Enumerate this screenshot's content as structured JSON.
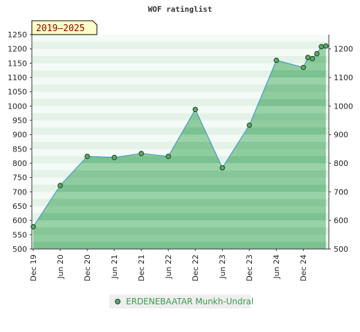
{
  "chart_data": {
    "type": "area",
    "title": "WOF ratinglist",
    "period_badge": "2019–2025",
    "y_ticks": [
      500,
      550,
      600,
      650,
      700,
      750,
      800,
      850,
      900,
      950,
      1000,
      1050,
      1100,
      1150,
      1200,
      1250
    ],
    "y_ticks_right": [
      500,
      600,
      700,
      800,
      900,
      1000,
      1100,
      1200
    ],
    "ylim": [
      500,
      1250
    ],
    "x_ticks": [
      "Dec 19",
      "Jun 20",
      "Dec 20",
      "Jun 21",
      "Dec 21",
      "Jun 22",
      "Dec 22",
      "Jun 23",
      "Dec 23",
      "Jun 24",
      "Dec 24"
    ],
    "x_tick_months": [
      0,
      6,
      12,
      18,
      24,
      30,
      36,
      42,
      48,
      54,
      60
    ],
    "xlim_months": [
      0,
      65.5
    ],
    "series": [
      {
        "name": "ERDENEBAATAR Munkh-Undral",
        "color": "#4aa0c8",
        "marker_color": "#5aa866",
        "points": [
          {
            "t": 0,
            "v": 578
          },
          {
            "t": 6,
            "v": 722
          },
          {
            "t": 12,
            "v": 824
          },
          {
            "t": 18,
            "v": 820
          },
          {
            "t": 24,
            "v": 834
          },
          {
            "t": 30,
            "v": 824
          },
          {
            "t": 36,
            "v": 988
          },
          {
            "t": 42,
            "v": 784
          },
          {
            "t": 48,
            "v": 933
          },
          {
            "t": 54,
            "v": 1160
          },
          {
            "t": 60,
            "v": 1135
          },
          {
            "t": 61,
            "v": 1170
          },
          {
            "t": 62,
            "v": 1166
          },
          {
            "t": 63,
            "v": 1183
          },
          {
            "t": 64,
            "v": 1208
          },
          {
            "t": 65,
            "v": 1210
          }
        ]
      }
    ],
    "legend": "bottom-center",
    "grid": true
  }
}
